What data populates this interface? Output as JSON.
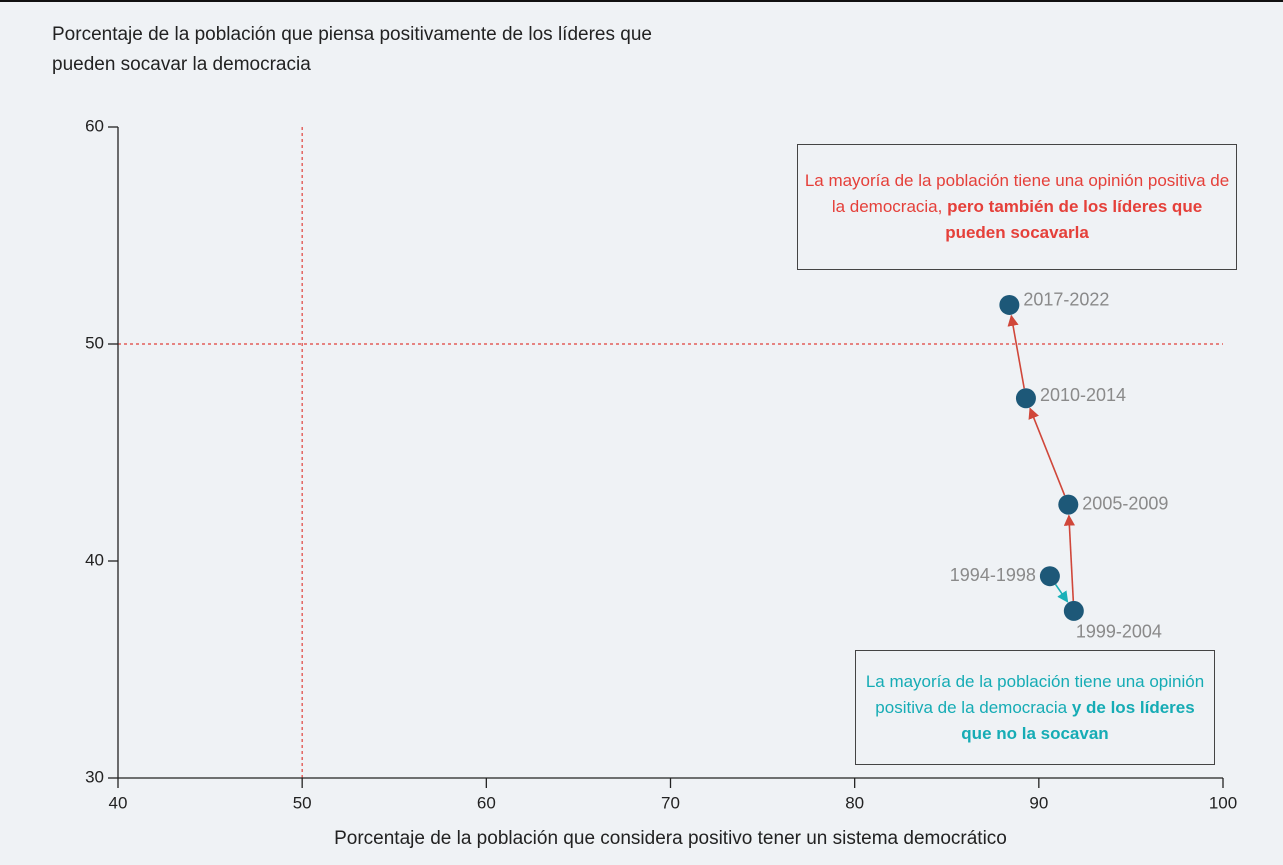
{
  "chart_data": {
    "type": "scatter",
    "y_title": "Porcentaje de la población que piensa positivamente de los líderes que pueden socavar la democracia",
    "x_title": "Porcentaje de la población que considera positivo tener un sistema democrático",
    "labels": [
      "1994-1998",
      "1999-2004",
      "2005-2009",
      "2010-2014",
      "2017-2022"
    ],
    "x": [
      90.6,
      91.9,
      91.6,
      89.3,
      88.4
    ],
    "y": [
      39.3,
      37.7,
      42.6,
      47.5,
      51.8
    ],
    "color": "#1d5878",
    "path_colors": [
      "#1ab0b8",
      "#d0473a",
      "#d0473a",
      "#d0473a"
    ],
    "xlim": [
      40,
      100
    ],
    "xticks": [
      40,
      50,
      60,
      70,
      80,
      90,
      100
    ],
    "ylim": [
      30,
      60
    ],
    "yticks": [
      30,
      40,
      50,
      60
    ],
    "reference_lines": {
      "x": 50,
      "y": 50,
      "color": "#e0413a"
    },
    "annotations": [
      {
        "text": "La mayoría de la población tiene una opinión positiva de la democracia, ",
        "bold": "pero también de los líderes que pueden socavarla",
        "color": "#e5403a"
      },
      {
        "text": "La mayoría de la población tiene una opinión positiva de la democracia ",
        "bold": "y de los líderes que no la socavan",
        "color": "#16acb5"
      }
    ]
  }
}
